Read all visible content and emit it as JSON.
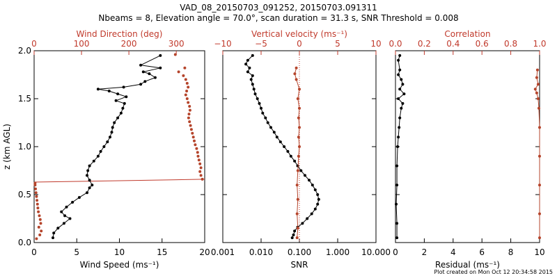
{
  "title_line1": "VAD_08_20150703_091252, 20150703.091311",
  "title_line2": "Nbeams = 8, Elevation angle = 70.0°, scan duration = 31.3 s, SNR Threshold = 0.008",
  "credit": "Plot created on Mon Oct 12 20:34:58 2015",
  "colors": {
    "axis": "#000000",
    "accent": "#c0392b",
    "marker_red": "#b5442b"
  },
  "chart_data": [
    {
      "type": "scatter",
      "name": "wind-panel",
      "ylabel": "z (km AGL)",
      "ylim": [
        0,
        2.0
      ],
      "yticks": [
        0.0,
        0.5,
        1.0,
        1.5,
        2.0
      ],
      "ytick_labels": [
        "0.0",
        "0.5",
        "1.0",
        "1.5",
        "2.0"
      ],
      "bottom_axis": {
        "label": "Wind Speed (ms⁻¹)",
        "range": [
          0,
          20
        ],
        "ticks": [
          0,
          5,
          10,
          15,
          20
        ],
        "tick_labels": [
          "0",
          "5",
          "10",
          "15",
          "20"
        ]
      },
      "top_axis": {
        "label": "Wind Direction (deg)",
        "range": [
          0,
          360
        ],
        "ticks": [
          0,
          100,
          200,
          300
        ],
        "tick_labels": [
          "0",
          "100",
          "200",
          "300"
        ]
      },
      "reference_line": {
        "z_start": 0.63,
        "z_end": 0.66
      },
      "series": [
        {
          "name": "Wind Speed",
          "axis": "bottom",
          "color": "#000000",
          "connected": true,
          "values": [
            [
              2.2,
              0.05
            ],
            [
              2.3,
              0.1
            ],
            [
              2.8,
              0.15
            ],
            [
              3.5,
              0.2
            ],
            [
              4.2,
              0.25
            ],
            [
              3.6,
              0.28
            ],
            [
              3.2,
              0.32
            ],
            [
              3.8,
              0.37
            ],
            [
              4.5,
              0.42
            ],
            [
              5.3,
              0.47
            ],
            [
              6.2,
              0.52
            ],
            [
              6.5,
              0.57
            ],
            [
              6.8,
              0.6
            ],
            [
              6.5,
              0.65
            ],
            [
              6.2,
              0.7
            ],
            [
              6.3,
              0.75
            ],
            [
              6.5,
              0.8
            ],
            [
              7.0,
              0.85
            ],
            [
              7.5,
              0.9
            ],
            [
              7.8,
              0.95
            ],
            [
              8.2,
              1.0
            ],
            [
              8.6,
              1.05
            ],
            [
              8.9,
              1.1
            ],
            [
              9.1,
              1.15
            ],
            [
              9.2,
              1.2
            ],
            [
              9.4,
              1.25
            ],
            [
              9.8,
              1.3
            ],
            [
              10.2,
              1.35
            ],
            [
              10.4,
              1.4
            ],
            [
              10.6,
              1.45
            ],
            [
              9.6,
              1.48
            ],
            [
              10.8,
              1.52
            ],
            [
              9.8,
              1.55
            ],
            [
              8.8,
              1.58
            ],
            [
              7.5,
              1.6
            ],
            [
              10.5,
              1.62
            ],
            [
              12.5,
              1.65
            ],
            [
              13.0,
              1.68
            ],
            [
              14.2,
              1.72
            ],
            [
              13.5,
              1.76
            ],
            [
              12.8,
              1.78
            ],
            [
              14.8,
              1.82
            ],
            [
              12.5,
              1.85
            ],
            [
              14.8,
              1.95
            ]
          ]
        },
        {
          "name": "Wind Direction",
          "axis": "top",
          "color": "#b5442b",
          "connected": false,
          "values": [
            [
              5,
              0.04
            ],
            [
              12,
              0.08
            ],
            [
              15,
              0.12
            ],
            [
              10,
              0.16
            ],
            [
              14,
              0.2
            ],
            [
              13,
              0.24
            ],
            [
              11,
              0.28
            ],
            [
              9,
              0.32
            ],
            [
              8,
              0.36
            ],
            [
              7,
              0.4
            ],
            [
              6,
              0.44
            ],
            [
              5,
              0.48
            ],
            [
              4,
              0.52
            ],
            [
              3,
              0.56
            ],
            [
              2,
              0.6
            ],
            [
              2,
              0.62
            ],
            [
              355,
              0.66
            ],
            [
              352,
              0.7
            ],
            [
              350,
              0.74
            ],
            [
              352,
              0.78
            ],
            [
              350,
              0.82
            ],
            [
              348,
              0.86
            ],
            [
              346,
              0.9
            ],
            [
              345,
              0.94
            ],
            [
              343,
              0.98
            ],
            [
              340,
              1.02
            ],
            [
              338,
              1.06
            ],
            [
              336,
              1.1
            ],
            [
              334,
              1.14
            ],
            [
              332,
              1.18
            ],
            [
              330,
              1.22
            ],
            [
              328,
              1.26
            ],
            [
              326,
              1.3
            ],
            [
              327,
              1.34
            ],
            [
              329,
              1.38
            ],
            [
              328,
              1.42
            ],
            [
              325,
              1.46
            ],
            [
              323,
              1.5
            ],
            [
              320,
              1.54
            ],
            [
              322,
              1.58
            ],
            [
              325,
              1.62
            ],
            [
              323,
              1.66
            ],
            [
              320,
              1.7
            ],
            [
              315,
              1.74
            ],
            [
              305,
              1.78
            ],
            [
              318,
              1.82
            ],
            [
              298,
              1.96
            ]
          ]
        }
      ]
    },
    {
      "type": "scatter",
      "name": "velocity-panel",
      "ylim": [
        0,
        2.0
      ],
      "bottom_axis": {
        "label": "SNR",
        "scale": "log",
        "range": [
          0.001,
          10
        ],
        "ticks": [
          0.001,
          0.01,
          0.1,
          1,
          10
        ],
        "tick_labels": [
          "0.001",
          "0.010",
          "0.100",
          "1.000",
          "10.000"
        ]
      },
      "top_axis": {
        "label": "Vertical velocity (ms⁻¹)",
        "range": [
          -10,
          10
        ],
        "ticks": [
          -10,
          -5,
          0,
          5,
          10
        ],
        "tick_labels": [
          "−10",
          "−5",
          "0",
          "5",
          "10"
        ]
      },
      "zero_line": 0,
      "series": [
        {
          "name": "SNR",
          "axis": "bottom",
          "color": "#000000",
          "connected": true,
          "values": [
            [
              0.065,
              0.05
            ],
            [
              0.07,
              0.08
            ],
            [
              0.075,
              0.12
            ],
            [
              0.09,
              0.16
            ],
            [
              0.12,
              0.2
            ],
            [
              0.16,
              0.25
            ],
            [
              0.21,
              0.3
            ],
            [
              0.26,
              0.35
            ],
            [
              0.3,
              0.4
            ],
            [
              0.32,
              0.45
            ],
            [
              0.3,
              0.5
            ],
            [
              0.26,
              0.55
            ],
            [
              0.22,
              0.6
            ],
            [
              0.18,
              0.65
            ],
            [
              0.14,
              0.7
            ],
            [
              0.11,
              0.75
            ],
            [
              0.09,
              0.8
            ],
            [
              0.075,
              0.85
            ],
            [
              0.06,
              0.9
            ],
            [
              0.05,
              0.95
            ],
            [
              0.04,
              1.0
            ],
            [
              0.032,
              1.05
            ],
            [
              0.026,
              1.1
            ],
            [
              0.022,
              1.15
            ],
            [
              0.018,
              1.2
            ],
            [
              0.015,
              1.25
            ],
            [
              0.013,
              1.3
            ],
            [
              0.011,
              1.35
            ],
            [
              0.01,
              1.4
            ],
            [
              0.009,
              1.45
            ],
            [
              0.008,
              1.5
            ],
            [
              0.007,
              1.55
            ],
            [
              0.0065,
              1.6
            ],
            [
              0.006,
              1.65
            ],
            [
              0.0055,
              1.7
            ],
            [
              0.006,
              1.74
            ],
            [
              0.0045,
              1.78
            ],
            [
              0.005,
              1.82
            ],
            [
              0.004,
              1.86
            ],
            [
              0.0045,
              1.9
            ],
            [
              0.006,
              1.95
            ]
          ]
        },
        {
          "name": "Vertical velocity",
          "axis": "top",
          "color": "#b5442b",
          "connected": true,
          "values": [
            [
              -0.3,
              0.05
            ],
            [
              -0.2,
              0.15
            ],
            [
              -0.3,
              0.3
            ],
            [
              -0.2,
              0.45
            ],
            [
              -0.3,
              0.6
            ],
            [
              -0.2,
              0.75
            ],
            [
              -0.1,
              0.9
            ],
            [
              0.0,
              1.0
            ],
            [
              -0.1,
              1.1
            ],
            [
              0.0,
              1.2
            ],
            [
              -0.1,
              1.3
            ],
            [
              0.0,
              1.4
            ],
            [
              -0.2,
              1.5
            ],
            [
              0.0,
              1.6
            ],
            [
              -0.4,
              1.7
            ],
            [
              -0.6,
              1.76
            ],
            [
              -0.4,
              1.82
            ]
          ]
        }
      ]
    },
    {
      "type": "scatter",
      "name": "correlation-panel",
      "ylim": [
        0,
        2.0
      ],
      "bottom_axis": {
        "label": "Residual (ms⁻¹)",
        "range": [
          0,
          10
        ],
        "ticks": [
          0,
          2,
          4,
          6,
          8,
          10
        ],
        "tick_labels": [
          "0",
          "2",
          "4",
          "6",
          "8",
          "10"
        ]
      },
      "top_axis": {
        "label": "Correlation",
        "range": [
          0,
          1.0
        ],
        "ticks": [
          0,
          0.2,
          0.4,
          0.6,
          0.8,
          1.0
        ],
        "tick_labels": [
          "0.0",
          "0.2",
          "0.4",
          "0.6",
          "0.8",
          "1.0"
        ]
      },
      "series": [
        {
          "name": "Residual",
          "axis": "bottom",
          "color": "#000000",
          "connected": true,
          "values": [
            [
              0.1,
              0.05
            ],
            [
              0.1,
              0.2
            ],
            [
              0.05,
              0.4
            ],
            [
              0.1,
              0.6
            ],
            [
              0.1,
              0.8
            ],
            [
              0.15,
              1.0
            ],
            [
              0.2,
              1.1
            ],
            [
              0.25,
              1.2
            ],
            [
              0.3,
              1.3
            ],
            [
              0.4,
              1.4
            ],
            [
              0.5,
              1.45
            ],
            [
              0.2,
              1.5
            ],
            [
              0.6,
              1.55
            ],
            [
              0.3,
              1.6
            ],
            [
              0.5,
              1.65
            ],
            [
              0.4,
              1.7
            ],
            [
              0.2,
              1.75
            ],
            [
              0.3,
              1.8
            ],
            [
              0.2,
              1.9
            ],
            [
              0.3,
              1.95
            ]
          ]
        },
        {
          "name": "Correlation",
          "axis": "top",
          "color": "#b5442b",
          "connected": true,
          "values": [
            [
              1.0,
              0.05
            ],
            [
              1.0,
              0.3
            ],
            [
              1.0,
              0.6
            ],
            [
              1.0,
              0.9
            ],
            [
              1.0,
              1.2
            ],
            [
              0.995,
              1.4
            ],
            [
              0.99,
              1.5
            ],
            [
              0.98,
              1.56
            ],
            [
              0.97,
              1.6
            ],
            [
              0.99,
              1.65
            ],
            [
              0.98,
              1.72
            ],
            [
              0.985,
              1.8
            ]
          ]
        }
      ]
    }
  ]
}
